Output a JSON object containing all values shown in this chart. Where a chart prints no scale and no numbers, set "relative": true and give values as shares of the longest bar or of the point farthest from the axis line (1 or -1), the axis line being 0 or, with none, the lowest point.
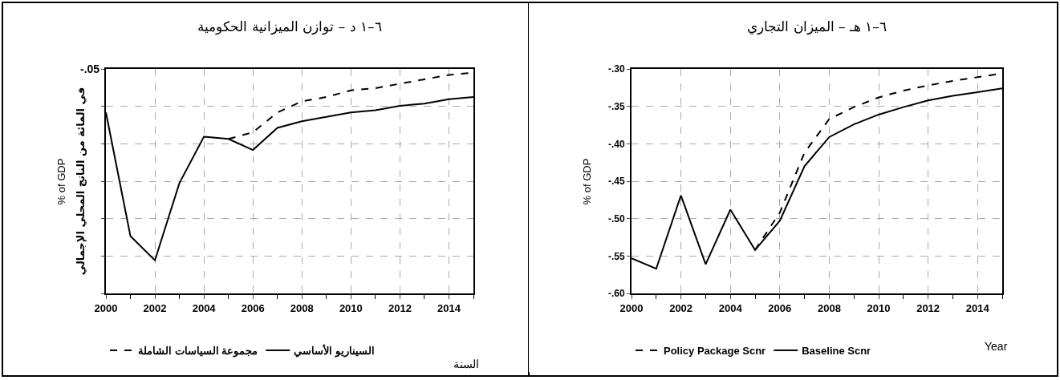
{
  "chart_data": [
    {
      "type": "line",
      "title": "٦–١ د – توازن الميزانية الحكومية",
      "ylabel": "% of GDP",
      "xlabel": "السنة",
      "relative": true,
      "annotations": [
        "-.05",
        "في المائة من الناتج المحلي الإجمالي"
      ],
      "xlim": [
        2000,
        2015
      ],
      "xticks": [
        2000,
        {
          "value": 2001,
          "label": null
        },
        2002,
        {
          "value": 2003,
          "label": null
        },
        2004,
        {
          "value": 2005,
          "label": null
        },
        2006,
        {
          "value": 2007,
          "label": null
        },
        2008,
        {
          "value": 2009,
          "label": null
        },
        2010,
        {
          "value": 2011,
          "label": null
        },
        2012,
        {
          "value": 2013,
          "label": null
        },
        2014,
        {
          "value": 2015,
          "label": null
        }
      ],
      "grid": true,
      "legend": "bottom",
      "marker": "none",
      "series": [
        {
          "name": "مجموعة السياسات الشاملة",
          "color": "#000000",
          "line_style": "dashed",
          "x": [
            2005,
            2006,
            2007,
            2008,
            2009,
            2010,
            2011,
            2012,
            2013,
            2014,
            2015
          ],
          "values": [
            0.7,
            0.73,
            0.82,
            0.87,
            0.89,
            0.92,
            0.93,
            0.95,
            0.97,
            0.99,
            1
          ]
        },
        {
          "name": "السيناريو الأساسي",
          "color": "#000000",
          "line_style": "solid",
          "x": [
            2000,
            2001,
            2002,
            2003,
            2004,
            2005,
            2006,
            2007,
            2008,
            2009,
            2010,
            2011,
            2012,
            2013,
            2014,
            2015
          ],
          "values": [
            0.82,
            0.26,
            0.15,
            0.5,
            0.71,
            0.7,
            0.65,
            0.75,
            0.78,
            0.8,
            0.82,
            0.83,
            0.85,
            0.86,
            0.88,
            0.89
          ]
        }
      ]
    },
    {
      "type": "line",
      "title": "٦–١ هـ – الميزان التجاري",
      "ylabel": "% of GDP",
      "xlabel": "Year",
      "xlim": [
        2000,
        2015
      ],
      "xticks": [
        2000,
        {
          "value": 2001,
          "label": null
        },
        2002,
        {
          "value": 2003,
          "label": null
        },
        2004,
        {
          "value": 2005,
          "label": null
        },
        2006,
        {
          "value": 2007,
          "label": null
        },
        2008,
        {
          "value": 2009,
          "label": null
        },
        2010,
        {
          "value": 2011,
          "label": null
        },
        2012,
        {
          "value": 2013,
          "label": null
        },
        2014,
        {
          "value": 2015,
          "label": null
        }
      ],
      "ylim": [
        -0.6,
        -0.3
      ],
      "yticks": [
        {
          "value": -0.6,
          "label": "-.60"
        },
        {
          "value": -0.55,
          "label": "-.55"
        },
        {
          "value": -0.5,
          "label": "-.50"
        },
        {
          "value": -0.45,
          "label": "-.45"
        },
        {
          "value": -0.4,
          "label": "-.40"
        },
        {
          "value": -0.35,
          "label": "-.35"
        },
        {
          "value": -0.3,
          "label": "-.30"
        }
      ],
      "grid": true,
      "legend": "bottom",
      "marker": "none",
      "series": [
        {
          "name": "Policy Package Scnr",
          "color": "#000000",
          "line_style": "dashed",
          "x": [
            2005,
            2006,
            2007,
            2008,
            2009,
            2010,
            2011,
            2012,
            2013,
            2014,
            2015
          ],
          "values": [
            -0.542,
            -0.492,
            -0.412,
            -0.367,
            -0.351,
            -0.338,
            -0.329,
            -0.322,
            -0.316,
            -0.311,
            -0.306
          ]
        },
        {
          "name": "Baseline Scnr",
          "color": "#000000",
          "line_style": "solid",
          "x": [
            2000,
            2001,
            2002,
            2003,
            2004,
            2005,
            2006,
            2007,
            2008,
            2009,
            2010,
            2011,
            2012,
            2013,
            2014,
            2015
          ],
          "values": [
            -0.553,
            -0.567,
            -0.469,
            -0.561,
            -0.488,
            -0.542,
            -0.503,
            -0.43,
            -0.391,
            -0.374,
            -0.361,
            -0.351,
            -0.342,
            -0.336,
            -0.331,
            -0.326
          ]
        }
      ]
    }
  ]
}
